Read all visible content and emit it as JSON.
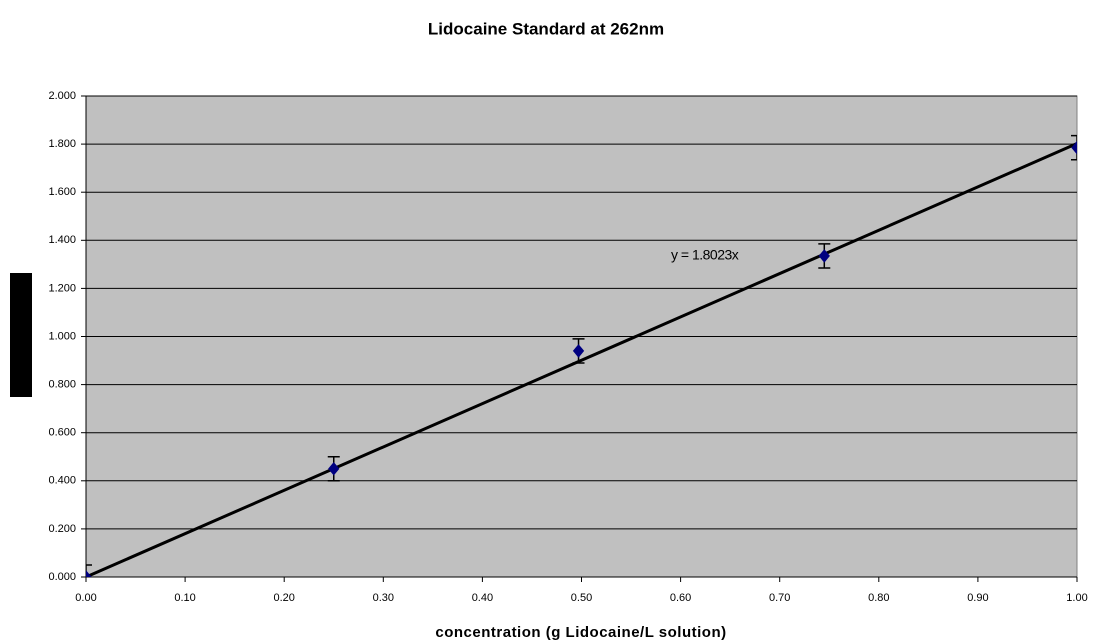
{
  "chart_data": {
    "type": "scatter",
    "title": "Lidocaine Standard at 262nm",
    "x_label": "concentration (g Lidocaine/L solution)",
    "x": [
      0,
      0.25,
      0.497,
      0.745,
      1.0
    ],
    "values": [
      0,
      0.45,
      0.94,
      1.335,
      1.785
    ],
    "errors": [
      0.05,
      0.05,
      0.05,
      0.05,
      0.05
    ],
    "color": "#000080",
    "trendline": {
      "slope": 1.8023,
      "label": "y = 1.8023x",
      "color": "#000000"
    },
    "xlim": [
      0,
      1
    ],
    "xticks": [
      {
        "value": 0,
        "label": "0.00"
      },
      {
        "value": 0.1,
        "label": "0.10"
      },
      {
        "value": 0.2,
        "label": "0.20"
      },
      {
        "value": 0.3,
        "label": "0.30"
      },
      {
        "value": 0.4,
        "label": "0.40"
      },
      {
        "value": 0.5,
        "label": "0.50"
      },
      {
        "value": 0.6,
        "label": "0.60"
      },
      {
        "value": 0.7,
        "label": "0.70"
      },
      {
        "value": 0.8,
        "label": "0.80"
      },
      {
        "value": 0.9,
        "label": "0.90"
      },
      {
        "value": 1,
        "label": "1.00"
      }
    ],
    "ylim": [
      0,
      2
    ],
    "yticks": [
      {
        "value": 0,
        "label": "0.000"
      },
      {
        "value": 0.2,
        "label": "0.200"
      },
      {
        "value": 0.4,
        "label": "0.400"
      },
      {
        "value": 0.6,
        "label": "0.600"
      },
      {
        "value": 0.8,
        "label": "0.800"
      },
      {
        "value": 1.0,
        "label": "1.000"
      },
      {
        "value": 1.2,
        "label": "1.200"
      },
      {
        "value": 1.4,
        "label": "1.400"
      },
      {
        "value": 1.6,
        "label": "1.600"
      },
      {
        "value": 1.8,
        "label": "1.800"
      },
      {
        "value": 2.0,
        "label": "2.000"
      }
    ],
    "grid": true
  }
}
